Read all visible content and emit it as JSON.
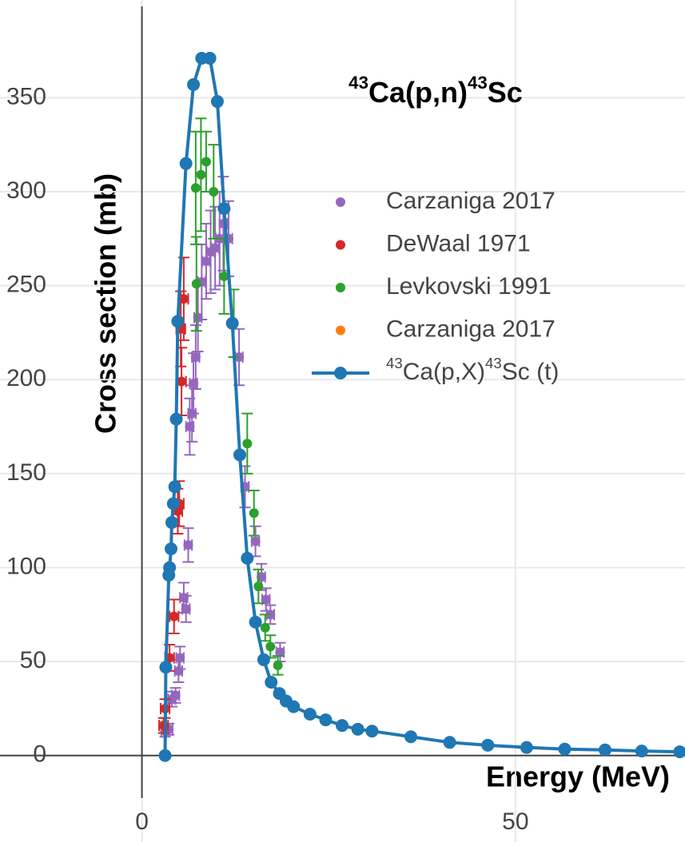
{
  "chart_data": {
    "type": "scatter",
    "title": [
      {
        "text": "43",
        "sup": true
      },
      {
        "text": "Ca(p,n)",
        "sup": false
      },
      {
        "text": "43",
        "sup": true
      },
      {
        "text": "Sc",
        "sup": false
      }
    ],
    "xlabel": "Energy (MeV)",
    "ylabel": "Cross section (mb)",
    "xlim": [
      -19,
      72.7
    ],
    "ylim": [
      -46,
      402
    ],
    "xticks": [
      0,
      50
    ],
    "yticks": [
      0,
      50,
      100,
      150,
      200,
      250,
      300,
      350
    ],
    "grid": true,
    "series": [
      {
        "name": "Carzaniga 2017",
        "color": "#9467bd",
        "mode": "markers",
        "x": [
          3.1,
          3.6,
          4.0,
          4.5,
          4.9,
          5.1,
          5.6,
          5.9,
          6.2,
          6.4,
          6.7,
          6.9,
          7.2,
          7.5,
          8.0,
          8.6,
          9.2,
          9.8,
          10.4,
          10.9,
          11.6,
          13.0,
          13.8,
          15.2,
          16.0,
          16.6,
          17.2,
          18.5
        ],
        "values": [
          13,
          14,
          30,
          32,
          45,
          52,
          84,
          78,
          112,
          175,
          182,
          198,
          212,
          233,
          252,
          263,
          268,
          270,
          275,
          283,
          275,
          212,
          143,
          114,
          95,
          83,
          75,
          55
        ],
        "errors": [
          3,
          3,
          4,
          4,
          6,
          6,
          8,
          7,
          9,
          15,
          15,
          16,
          17,
          18,
          20,
          20,
          22,
          22,
          25,
          25,
          20,
          15,
          11,
          8,
          7,
          6,
          5,
          5
        ],
        "xerrors": [
          0.5,
          0.5,
          0.5,
          0.5,
          0.5,
          0.5,
          0.5,
          0.5,
          0.5,
          0.5,
          0.5,
          0.5,
          0.5,
          0.5,
          0.5,
          0.5,
          0.5,
          0.5,
          0.5,
          0.5,
          0.5,
          0.5,
          0.5,
          0.5,
          0.5,
          0.5,
          0.5,
          0.5
        ]
      },
      {
        "name": "DeWaal 1971",
        "color": "#d62728",
        "mode": "markers",
        "x": [
          2.9,
          3.1,
          3.7,
          4.3,
          4.8,
          5.0,
          5.3,
          5.2,
          5.6
        ],
        "values": [
          16,
          25,
          52,
          74,
          130,
          134,
          199,
          227,
          243
        ],
        "errors": [
          4,
          5,
          7,
          9,
          12,
          12,
          18,
          20,
          22
        ],
        "xerrors": [
          0.6,
          0.6,
          0.6,
          0.6,
          0.6,
          0.6,
          0.6,
          0.6,
          0.6
        ]
      },
      {
        "name": "Levkovski 1991",
        "color": "#2ca02c",
        "mode": "markers",
        "x": [
          7.3,
          7.2,
          7.9,
          8.6,
          9.6,
          11.0,
          12.3,
          14.1,
          15.0,
          15.6,
          16.5,
          17.2,
          18.2
        ],
        "values": [
          251,
          302,
          309,
          316,
          300,
          255,
          230,
          166,
          129,
          90,
          68,
          58,
          48
        ],
        "errors": [
          25,
          30,
          30,
          16,
          25,
          20,
          18,
          16,
          12,
          9,
          7,
          6,
          5
        ]
      },
      {
        "name": "Carzaniga 2017",
        "color": "#ff7f0e",
        "mode": "markers",
        "x": [],
        "values": []
      },
      {
        "name": [
          {
            "text": "43",
            "sup": true
          },
          {
            "text": "Ca(p,X)",
            "sup": false
          },
          {
            "text": "43",
            "sup": true
          },
          {
            "text": "Sc (t)",
            "sup": false
          }
        ],
        "color": "#1f77b4",
        "mode": "lines+markers",
        "x": [
          3.1,
          3.2,
          3.6,
          3.7,
          3.9,
          4.0,
          4.2,
          4.4,
          4.6,
          4.8,
          5.9,
          6.9,
          8.0,
          9.1,
          10.1,
          11.0,
          12.1,
          13.1,
          14.1,
          15.2,
          16.3,
          17.3,
          18.4,
          19.3,
          20.3,
          22.5,
          24.6,
          26.8,
          28.9,
          30.8,
          36,
          41.2,
          46.3,
          51.5,
          56.6,
          62,
          66.9,
          72
        ],
        "values": [
          0,
          47,
          96,
          100,
          110,
          124,
          134,
          143,
          179,
          231,
          315,
          357,
          371,
          371,
          348,
          291,
          230,
          160,
          105,
          71,
          51,
          39,
          33,
          29,
          26,
          22,
          19,
          16,
          14,
          13,
          10,
          7,
          5.5,
          4.3,
          3.4,
          3,
          2.4,
          2
        ]
      }
    ]
  }
}
